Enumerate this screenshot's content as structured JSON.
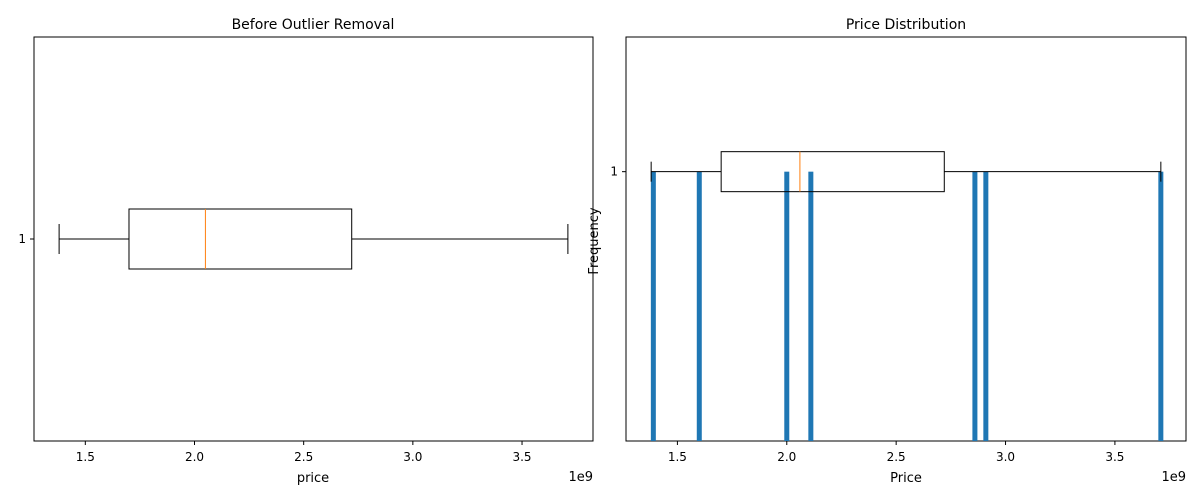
{
  "chart_data": [
    {
      "type": "boxplot",
      "title": "Before Outlier Removal",
      "xlabel": "price",
      "ylabel": "",
      "orientation": "horizontal",
      "xlim": [
        1265000000.0,
        3825000000.0
      ],
      "ylim": [
        0.5,
        1.5
      ],
      "x_ticks": [
        1500000000.0,
        2000000000.0,
        2500000000.0,
        3000000000.0,
        3500000000.0
      ],
      "x_tick_labels": [
        "1.5",
        "2.0",
        "2.5",
        "3.0",
        "3.5"
      ],
      "y_ticks": [
        1
      ],
      "y_tick_labels": [
        "1"
      ],
      "offset_label": "1e9",
      "box": {
        "whisker_low": 1380000000.0,
        "q1": 1700000000.0,
        "median": 2050000000.0,
        "q3": 2720000000.0,
        "whisker_high": 3710000000.0
      }
    },
    {
      "type": "bar+boxplot",
      "title": "Price Distribution",
      "xlabel": "Price",
      "ylabel": "Frequency",
      "xlim": [
        1265000000.0,
        3825000000.0
      ],
      "ylim": [
        0,
        1.5
      ],
      "x_ticks": [
        1500000000.0,
        2000000000.0,
        2500000000.0,
        3000000000.0,
        3500000000.0
      ],
      "x_tick_labels": [
        "1.5",
        "2.0",
        "2.5",
        "3.0",
        "3.5"
      ],
      "y_ticks": [
        1
      ],
      "y_tick_labels": [
        "1"
      ],
      "offset_label": "1e9",
      "bar_color": "#1f77b4",
      "bars": [
        {
          "x": 1390000000.0,
          "count": 1
        },
        {
          "x": 1600000000.0,
          "count": 1
        },
        {
          "x": 2000000000.0,
          "count": 1
        },
        {
          "x": 2110000000.0,
          "count": 1
        },
        {
          "x": 2860000000.0,
          "count": 1
        },
        {
          "x": 2910000000.0,
          "count": 1
        },
        {
          "x": 3710000000.0,
          "count": 1
        }
      ],
      "box": {
        "position": 1,
        "whisker_low": 1380000000.0,
        "q1": 1700000000.0,
        "median": 2060000000.0,
        "q3": 2720000000.0,
        "whisker_high": 3710000000.0
      }
    }
  ],
  "colors": {
    "median": "#ff7f0e",
    "bars": "#1f77b4",
    "axes": "#000000"
  }
}
